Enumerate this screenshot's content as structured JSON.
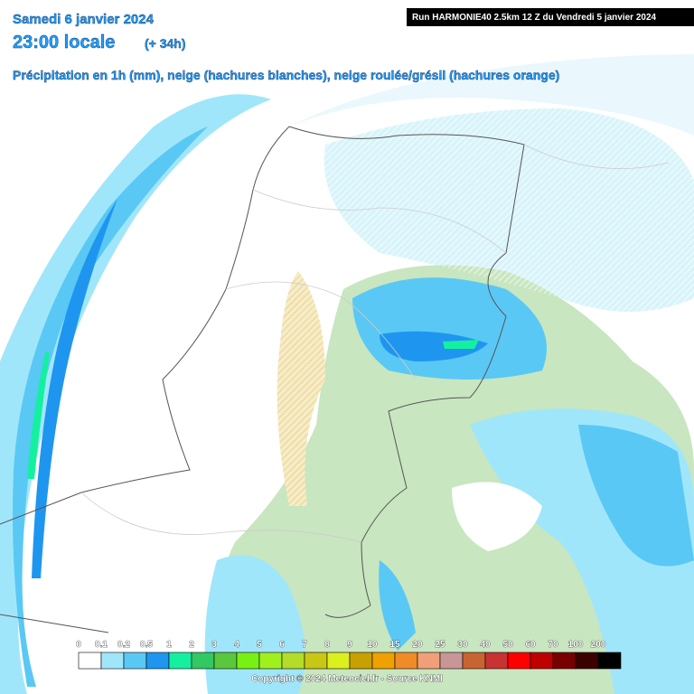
{
  "header": {
    "date": "Samedi 6 janvier 2024",
    "time": "23:00 locale",
    "lead": "(+ 34h)",
    "subtitle": "Précipitation en 1h (mm), neige (hachures blanches), neige roulée/grésil (hachures orange)",
    "run": "Run HARMONIE40 2.5km 12 Z du Vendredi 5 janvier 2024"
  },
  "legend": {
    "items": [
      {
        "label": "0",
        "color": "#ffffff"
      },
      {
        "label": "0.1",
        "color": "#a0e6fa"
      },
      {
        "label": "0.2",
        "color": "#5ac8f5"
      },
      {
        "label": "0.5",
        "color": "#1e96f0"
      },
      {
        "label": "1",
        "color": "#14f0a0"
      },
      {
        "label": "2",
        "color": "#32c864"
      },
      {
        "label": "3",
        "color": "#5ac83c"
      },
      {
        "label": "4",
        "color": "#78f014"
      },
      {
        "label": "5",
        "color": "#a0f01e"
      },
      {
        "label": "6",
        "color": "#b4dc28"
      },
      {
        "label": "7",
        "color": "#c8c814"
      },
      {
        "label": "8",
        "color": "#dcf01e"
      },
      {
        "label": "9",
        "color": "#c8a000"
      },
      {
        "label": "10",
        "color": "#f0a000"
      },
      {
        "label": "15",
        "color": "#f08c28"
      },
      {
        "label": "20",
        "color": "#f0a078"
      },
      {
        "label": "25",
        "color": "#c89696"
      },
      {
        "label": "30",
        "color": "#c86432"
      },
      {
        "label": "40",
        "color": "#c83232"
      },
      {
        "label": "50",
        "color": "#ff0000"
      },
      {
        "label": "60",
        "color": "#be0000"
      },
      {
        "label": "70",
        "color": "#780000"
      },
      {
        "label": "100",
        "color": "#3c0000"
      },
      {
        "label": "200",
        "color": "#000000"
      }
    ]
  },
  "footer": {
    "copyright": "Copyright © 2024 Meteociel.fr - Source KNMI"
  }
}
